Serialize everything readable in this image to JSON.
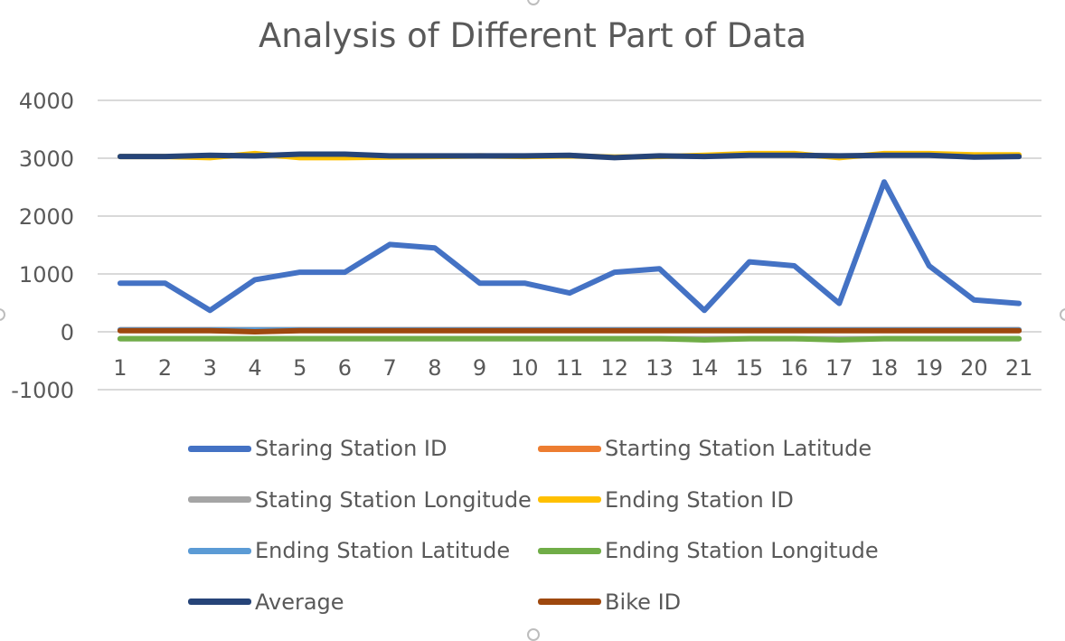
{
  "chart_data": {
    "type": "line",
    "title": "Analysis of Different Part of Data",
    "xlabel": "",
    "ylabel": "",
    "ylim": [
      -1000,
      4000
    ],
    "yticks": [
      4000,
      3000,
      2000,
      1000,
      0,
      -1000
    ],
    "grid": true,
    "legend_position": "bottom",
    "categories": [
      "1",
      "2",
      "3",
      "4",
      "5",
      "6",
      "7",
      "8",
      "9",
      "10",
      "11",
      "12",
      "13",
      "14",
      "15",
      "16",
      "17",
      "18",
      "19",
      "20",
      "21"
    ],
    "series": [
      {
        "name": "Staring Station ID",
        "color": "#4472C4",
        "values": [
          840,
          840,
          370,
          900,
          1030,
          1030,
          1510,
          1450,
          840,
          840,
          670,
          1030,
          1090,
          370,
          1210,
          1140,
          490,
          2590,
          1140,
          550,
          490
        ]
      },
      {
        "name": "Starting Station Latitude",
        "color": "#ED7D31",
        "values": [
          34,
          34,
          34,
          34,
          34,
          34,
          34,
          34,
          34,
          34,
          34,
          34,
          34,
          34,
          34,
          34,
          34,
          34,
          34,
          34,
          34
        ]
      },
      {
        "name": "Stating Station Longitude",
        "color": "#A5A5A5",
        "values": [
          -118,
          -118,
          -118,
          -118,
          -118,
          -118,
          -118,
          -118,
          -118,
          -118,
          -118,
          -118,
          -118,
          -118,
          -118,
          -118,
          -118,
          -118,
          -118,
          -118,
          -118
        ]
      },
      {
        "name": "Ending Station ID",
        "color": "#FFC000",
        "values": [
          3030,
          3030,
          3010,
          3080,
          3010,
          3010,
          3020,
          3030,
          3040,
          3030,
          3040,
          3020,
          3030,
          3050,
          3080,
          3080,
          3010,
          3080,
          3080,
          3060,
          3060
        ]
      },
      {
        "name": "Ending Station Latitude",
        "color": "#5B9BD5",
        "values": [
          34,
          34,
          34,
          34,
          34,
          34,
          34,
          34,
          34,
          34,
          34,
          34,
          34,
          34,
          34,
          34,
          34,
          34,
          34,
          34,
          34
        ]
      },
      {
        "name": "Ending Station Longitude",
        "color": "#70AD47",
        "values": [
          -118,
          -118,
          -118,
          -118,
          -118,
          -118,
          -118,
          -118,
          -118,
          -118,
          -118,
          -118,
          -118,
          -140,
          -118,
          -118,
          -140,
          -118,
          -118,
          -118,
          -118
        ]
      },
      {
        "name": "Average",
        "color": "#264478",
        "values": [
          3030,
          3030,
          3050,
          3040,
          3070,
          3070,
          3040,
          3040,
          3040,
          3040,
          3050,
          3010,
          3040,
          3030,
          3050,
          3050,
          3040,
          3050,
          3050,
          3020,
          3030
        ]
      },
      {
        "name": "Bike ID",
        "color": "#9E480E",
        "values": [
          20,
          20,
          20,
          0,
          20,
          20,
          20,
          20,
          20,
          20,
          20,
          20,
          20,
          20,
          20,
          20,
          20,
          20,
          20,
          20,
          20
        ]
      }
    ]
  }
}
